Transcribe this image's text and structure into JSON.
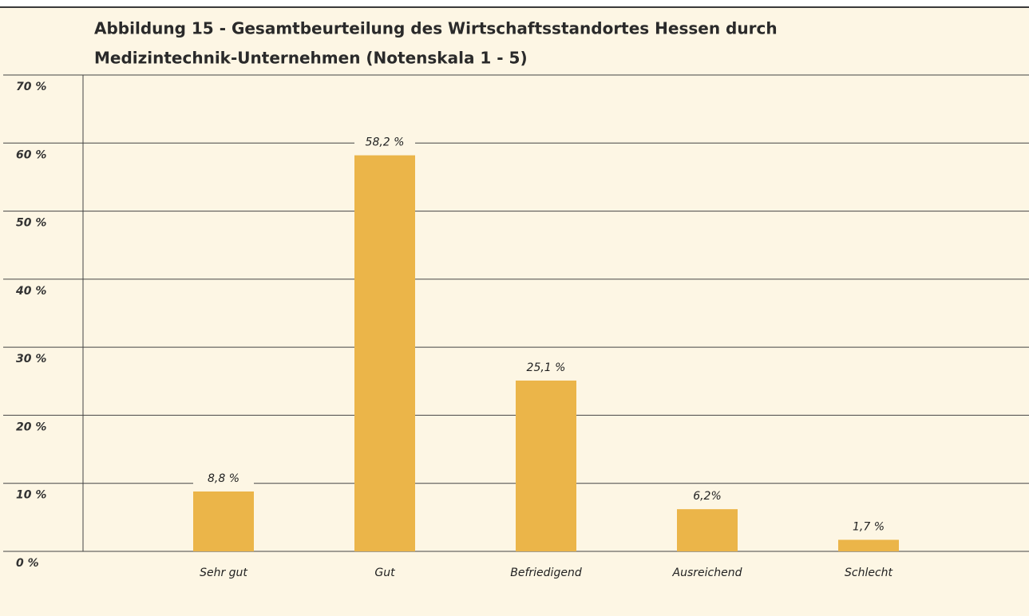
{
  "chart_data": {
    "type": "bar",
    "title": [
      "Abbildung 15 - Gesamtbeurteilung des Wirtschaftsstandortes Hessen durch",
      "Medizintechnik-Unternehmen (Notenskala 1 - 5)"
    ],
    "categories": [
      "Sehr gut",
      "Gut",
      "Befriedigend",
      "Ausreichend",
      "Schlecht"
    ],
    "values": [
      8.8,
      58.2,
      25.1,
      6.2,
      1.7
    ],
    "value_labels": [
      "8,8 %",
      "58,2 %",
      "25,1 %",
      "6,2%",
      "1,7 %"
    ],
    "color": "#ebb549",
    "ylim": [
      0,
      70
    ],
    "yticks": [
      {
        "value": 0,
        "label": "0 %"
      },
      {
        "value": 10,
        "label": "10 %"
      },
      {
        "value": 20,
        "label": "20 %"
      },
      {
        "value": 30,
        "label": "30 %"
      },
      {
        "value": 40,
        "label": "40 %"
      },
      {
        "value": 50,
        "label": "50 %"
      },
      {
        "value": 60,
        "label": "60 %"
      },
      {
        "value": 70,
        "label": "70 %"
      }
    ],
    "grid": true
  }
}
